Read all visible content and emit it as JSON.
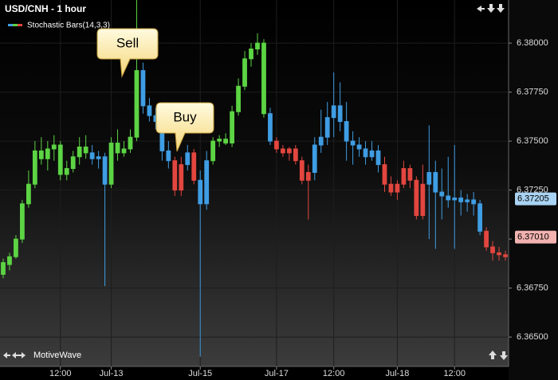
{
  "chart_data": {
    "type": "candlestick",
    "title": "USD/CNH - 1 hour",
    "legend": "Stochastic Bars(14,3,3)",
    "brand": "MotiveWave",
    "annotations": [
      "Sell",
      "Buy"
    ],
    "xlim": [
      -0.5,
      79.5
    ],
    "xticks": [
      {
        "value": 9,
        "label": "12:00"
      },
      {
        "value": 17,
        "label": "Jul-13"
      },
      {
        "value": 31,
        "label": "Jul-15"
      },
      {
        "value": 43,
        "label": "Jul-17"
      },
      {
        "value": 52,
        "label": "12:00"
      },
      {
        "value": 62,
        "label": "Jul-18"
      },
      {
        "value": 71,
        "label": "12:00"
      }
    ],
    "ylim": [
      6.3635,
      6.3822
    ],
    "yticks": [
      {
        "value": 6.365,
        "label": "6.36500"
      },
      {
        "value": 6.3675,
        "label": "6.36750"
      },
      {
        "value": 6.37,
        "label": "6.37000"
      },
      {
        "value": 6.3725,
        "label": "6.37250"
      },
      {
        "value": 6.375,
        "label": "6.37500"
      },
      {
        "value": 6.3775,
        "label": "6.37750"
      },
      {
        "value": 6.38,
        "label": "6.38000"
      }
    ],
    "price_markers": [
      {
        "value": 6.37205,
        "label": "6.37205",
        "color": "#a9d3f2"
      },
      {
        "value": 6.3701,
        "label": "6.37010",
        "color": "#f2b3b0"
      }
    ],
    "open": [
      6.3682,
      6.3687,
      6.3691,
      6.37,
      6.3718,
      6.3728,
      6.3745,
      6.3741,
      6.3746,
      6.3748,
      6.3733,
      6.3736,
      6.3742,
      6.3747,
      6.3744,
      6.3741,
      6.3742,
      6.3728,
      6.3749,
      6.3744,
      6.3746,
      6.3752,
      6.3786,
      6.3768,
      6.3763,
      6.376,
      6.3745,
      6.374,
      6.3725,
      6.3738,
      6.3744,
      6.373,
      6.3718,
      6.374,
      6.375,
      6.3751,
      6.3749,
      6.3765,
      6.3778,
      6.3792,
      6.3797,
      6.38,
      6.3764,
      6.375,
      6.3746,
      6.3744,
      6.3746,
      6.374,
      6.373,
      6.3734,
      6.3748,
      6.3752,
      6.3762,
      6.3768,
      6.376,
      6.375,
      6.3748,
      6.3746,
      6.3742,
      6.3745,
      6.3738,
      6.3728,
      6.3724,
      6.3728,
      6.3736,
      6.373,
      6.3712,
      6.3728,
      6.3734,
      6.3724,
      6.3722,
      6.372,
      6.3721,
      6.3719,
      6.372,
      6.3718,
      6.3704,
      6.3696,
      6.3693,
      6.3692
    ],
    "high": [
      6.369,
      6.3693,
      6.3702,
      6.372,
      6.3735,
      6.375,
      6.3752,
      6.375,
      6.3753,
      6.375,
      6.374,
      6.3745,
      6.3752,
      6.3753,
      6.3748,
      6.3745,
      6.3744,
      6.3752,
      6.3756,
      6.375,
      6.3756,
      6.3822,
      6.379,
      6.3772,
      6.3767,
      6.3762,
      6.375,
      6.3742,
      6.3742,
      6.3748,
      6.3746,
      6.3735,
      6.3745,
      6.3752,
      6.3753,
      6.3754,
      6.3768,
      6.3782,
      6.3796,
      6.38,
      6.3805,
      6.3802,
      6.3767,
      6.3752,
      6.3748,
      6.3747,
      6.3748,
      6.3742,
      6.3738,
      6.3752,
      6.3766,
      6.377,
      6.3785,
      6.378,
      6.377,
      6.3755,
      6.3752,
      6.375,
      6.375,
      6.3748,
      6.3742,
      6.3732,
      6.373,
      6.374,
      6.3738,
      6.3732,
      6.3738,
      6.3758,
      6.374,
      6.3736,
      6.3742,
      6.3748,
      6.3725,
      6.3723,
      6.3724,
      6.372,
      6.3706,
      6.3699,
      6.3696,
      6.3694
    ],
    "low": [
      6.368,
      6.3684,
      6.369,
      6.3698,
      6.3716,
      6.3726,
      6.3738,
      6.3735,
      6.374,
      6.373,
      6.373,
      6.3734,
      6.3738,
      6.3741,
      6.3738,
      6.3736,
      6.3676,
      6.3726,
      6.374,
      6.3742,
      6.3744,
      6.375,
      6.3764,
      6.376,
      6.3756,
      6.374,
      6.3736,
      6.3722,
      6.3722,
      6.3735,
      6.3728,
      6.364,
      6.3715,
      6.3738,
      6.3747,
      6.3748,
      6.3747,
      6.3763,
      6.3776,
      6.3788,
      6.3794,
      6.3762,
      6.3748,
      6.3744,
      6.3742,
      6.374,
      6.3738,
      6.3728,
      6.371,
      6.373,
      6.3744,
      6.3748,
      6.3752,
      6.3755,
      6.374,
      6.3738,
      6.3742,
      6.3738,
      6.374,
      6.3734,
      6.3724,
      6.3722,
      6.372,
      6.3726,
      6.3726,
      6.371,
      6.371,
      6.37,
      6.3695,
      6.371,
      6.3716,
      6.3695,
      6.3712,
      6.3714,
      6.3712,
      6.3702,
      6.3694,
      6.3689,
      6.3689,
      6.3689
    ],
    "close": [
      6.3688,
      6.3691,
      6.37,
      6.3718,
      6.3728,
      6.3745,
      6.3741,
      6.3746,
      6.3748,
      6.3733,
      6.3736,
      6.3742,
      6.3747,
      6.3744,
      6.3741,
      6.3742,
      6.3728,
      6.3749,
      6.3744,
      6.3746,
      6.3752,
      6.3786,
      6.3768,
      6.3763,
      6.376,
      6.3745,
      6.374,
      6.3725,
      6.3738,
      6.3744,
      6.373,
      6.3718,
      6.374,
      6.375,
      6.3751,
      6.3749,
      6.3765,
      6.3778,
      6.3792,
      6.3797,
      6.38,
      6.3764,
      6.375,
      6.3746,
      6.3744,
      6.3746,
      6.374,
      6.373,
      6.3734,
      6.3748,
      6.3752,
      6.3762,
      6.3768,
      6.376,
      6.375,
      6.3748,
      6.3746,
      6.3742,
      6.3745,
      6.3738,
      6.3728,
      6.3724,
      6.3728,
      6.3736,
      6.373,
      6.3712,
      6.3728,
      6.3734,
      6.3724,
      6.3722,
      6.372,
      6.3721,
      6.3719,
      6.372,
      6.3718,
      6.3704,
      6.3696,
      6.3693,
      6.3692,
      6.3691
    ],
    "colors": [
      "#5cd444",
      "#5cd444",
      "#5cd444",
      "#5cd444",
      "#5cd444",
      "#5cd444",
      "#5cd444",
      "#5cd444",
      "#5cd444",
      "#5cd444",
      "#5cd444",
      "#5cd444",
      "#5cd444",
      "#5cd444",
      "#3f9de3",
      "#3f9de3",
      "#3f9de3",
      "#5cd444",
      "#5cd444",
      "#5cd444",
      "#5cd444",
      "#5cd444",
      "#3f9de3",
      "#3f9de3",
      "#3f9de3",
      "#3f9de3",
      "#3f9de3",
      "#e2463f",
      "#e2463f",
      "#3f9de3",
      "#e2463f",
      "#3f9de3",
      "#3f9de3",
      "#5cd444",
      "#5cd444",
      "#5cd444",
      "#5cd444",
      "#5cd444",
      "#5cd444",
      "#5cd444",
      "#5cd444",
      "#5cd444",
      "#3f9de3",
      "#e2463f",
      "#e2463f",
      "#e2463f",
      "#e2463f",
      "#e2463f",
      "#e2463f",
      "#3f9de3",
      "#3f9de3",
      "#3f9de3",
      "#3f9de3",
      "#3f9de3",
      "#3f9de3",
      "#3f9de3",
      "#3f9de3",
      "#3f9de3",
      "#3f9de3",
      "#3f9de3",
      "#e2463f",
      "#e2463f",
      "#e2463f",
      "#e2463f",
      "#e2463f",
      "#e2463f",
      "#e2463f",
      "#3f9de3",
      "#3f9de3",
      "#3f9de3",
      "#3f9de3",
      "#3f9de3",
      "#3f9de3",
      "#3f9de3",
      "#3f9de3",
      "#3f9de3",
      "#e2463f",
      "#e2463f",
      "#e2463f",
      "#e2463f"
    ]
  }
}
